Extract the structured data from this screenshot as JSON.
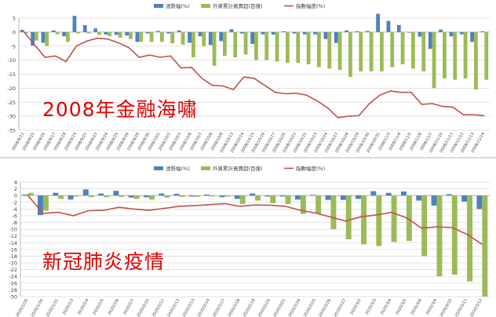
{
  "chart_data": [
    {
      "type": "bar",
      "caption": "2008年金融海嘯",
      "legend": [
        "漲跌幅(%)",
        "外資累計買賣超(百億)",
        "指數幅度(%)"
      ],
      "legend_position": "top-right",
      "ylim": [
        -35,
        5
      ],
      "yticks": [
        5,
        0,
        -5,
        -10,
        -15,
        -20,
        -25,
        -30,
        -35
      ],
      "grid": true,
      "categories": [
        "2008/9/12",
        "2008/9/15",
        "2008/9/16",
        "2008/9/17",
        "2008/9/18",
        "2008/9/19",
        "2008/9/22",
        "2008/9/23",
        "2008/9/24",
        "2008/9/25",
        "2008/9/26",
        "2008/9/29",
        "2008/9/30",
        "2008/10/1",
        "2008/10/2",
        "2008/10/3",
        "2008/10/6",
        "2008/10/7",
        "2008/10/8",
        "2008/10/9",
        "2008/10/13",
        "2008/10/14",
        "2008/10/15",
        "2008/10/16",
        "2008/10/17",
        "2008/10/20",
        "2008/10/21",
        "2008/10/22",
        "2008/10/23",
        "2008/10/24",
        "2008/10/27",
        "2008/10/28",
        "2008/10/29",
        "2008/10/30",
        "2008/10/31",
        "2008/11/3",
        "2008/11/4",
        "2008/11/5",
        "2008/11/6",
        "2008/11/7",
        "2008/11/10",
        "2008/11/11",
        "2008/11/12",
        "2008/11/13",
        "2008/11/14"
      ],
      "series": [
        {
          "name": "漲跌幅(%)",
          "kind": "bar",
          "color": "#4f81bd",
          "values": [
            0.8,
            -4.8,
            -3.8,
            0.6,
            -1.5,
            5.8,
            2.5,
            1.3,
            -0.9,
            -1.0,
            -1.2,
            -3.5,
            -0.5,
            0.4,
            -0.5,
            0.6,
            -3.8,
            -1.5,
            -4.6,
            -3.2,
            1.0,
            -0.5,
            -4.2,
            -0.8,
            -0.9,
            0.3,
            -0.5,
            -0.8,
            -0.8,
            -2.5,
            -3.9,
            0.6,
            0.3,
            0.4,
            6.5,
            4.0,
            2.5,
            -0.2,
            -1.6,
            -6.0,
            0.9,
            -1.5,
            -0.8,
            -3.5,
            0.3
          ]
        },
        {
          "name": "外資累計買賣超(百億)",
          "kind": "bar",
          "color": "#9bbb59",
          "values": [
            -0.5,
            -3.0,
            -5.0,
            -0.8,
            -3.5,
            -0.5,
            -0.5,
            -1.0,
            -1.5,
            -2.0,
            -2.5,
            -3.5,
            -3.5,
            -3.5,
            -4.0,
            -4.5,
            -9.0,
            -5.0,
            -12.0,
            -8.5,
            -9.0,
            -8.0,
            -10.0,
            -10.0,
            -10.5,
            -11.0,
            -11.0,
            -11.5,
            -12.5,
            -13.0,
            -13.5,
            -16.0,
            -14.0,
            -14.0,
            -14.0,
            -12.5,
            -11.5,
            -13.0,
            -14.0,
            -20.0,
            -16.5,
            -17.0,
            -16.5,
            -20.5,
            -17.0
          ]
        },
        {
          "name": "指數幅度(%)",
          "kind": "line",
          "color": "#c0504d",
          "values": [
            0,
            -4.5,
            -9,
            -8.5,
            -10.5,
            -5,
            -3.2,
            -2.2,
            -2.5,
            -3.8,
            -5.5,
            -9,
            -8.2,
            -9,
            -8.5,
            -12.8,
            -12.6,
            -16.5,
            -19,
            -19.2,
            -20.5,
            -16,
            -16.5,
            -19,
            -21.5,
            -22,
            -21.8,
            -22.5,
            -24.5,
            -27,
            -30.5,
            -30,
            -29.8,
            -25.5,
            -22.5,
            -21,
            -21.5,
            -21.5,
            -25.8,
            -25.5,
            -26.5,
            -26.8,
            -29.5,
            -29.5,
            -29.8
          ]
        }
      ]
    },
    {
      "type": "bar",
      "caption": "新冠肺炎疫情",
      "legend": [
        "漲跌幅(%)",
        "外資累計買賣超(百億)",
        "指數幅度(%)"
      ],
      "legend_position": "top-right",
      "ylim": [
        -30,
        4
      ],
      "yticks": [
        4,
        2,
        0,
        -2,
        -4,
        -6,
        -8,
        -10,
        -12,
        -14,
        -16,
        -18,
        -20,
        -22,
        -24,
        -26,
        -28,
        -30
      ],
      "grid": true,
      "categories": [
        "2020/1/20",
        "2020/1/30",
        "2020/1/31",
        "2020/2/3",
        "2020/2/4",
        "2020/2/5",
        "2020/2/6",
        "2020/2/7",
        "2020/2/10",
        "2020/2/11",
        "2020/2/12",
        "2020/2/13",
        "2020/2/14",
        "2020/2/17",
        "2020/2/18",
        "2020/2/19",
        "2020/2/20",
        "2020/2/21",
        "2020/2/24",
        "2020/2/25",
        "2020/2/26",
        "2020/2/27",
        "2020/3/2",
        "2020/3/3",
        "2020/3/4",
        "2020/3/5",
        "2020/3/6",
        "2020/3/9",
        "2020/3/10",
        "2020/3/11",
        "2020/3/12"
      ],
      "series": [
        {
          "name": "漲跌幅(%)",
          "kind": "bar",
          "color": "#4f81bd",
          "values": [
            0.3,
            -5.8,
            0.8,
            -1.2,
            1.8,
            0.6,
            1.4,
            -0.6,
            -0.5,
            0.6,
            0.5,
            -0.3,
            0.3,
            -0.5,
            -1.0,
            0.6,
            -0.3,
            -0.3,
            -1.2,
            0.2,
            -1.3,
            -1.3,
            -1.0,
            1.3,
            0.8,
            1.2,
            -1.5,
            -3.0,
            0.4,
            -1.8,
            -4.0
          ]
        },
        {
          "name": "外資累計買賣超(百億)",
          "kind": "bar",
          "color": "#9bbb59",
          "values": [
            0.8,
            -4.5,
            -1.0,
            -0.3,
            -0.5,
            -0.5,
            -0.4,
            -1.0,
            -1.2,
            -0.6,
            -0.4,
            -0.4,
            -0.3,
            -0.3,
            -2.5,
            -1.5,
            -2.3,
            -2.5,
            -5.5,
            -5.4,
            -10.0,
            -13.0,
            -14.5,
            -15.0,
            -13.8,
            -13.5,
            -18.0,
            -24.0,
            -23.5,
            -25.5,
            -30.0
          ]
        },
        {
          "name": "指數幅度(%)",
          "kind": "line",
          "color": "#c0504d",
          "values": [
            0,
            -5.3,
            -5,
            -6,
            -4.5,
            -4.4,
            -3.5,
            -4,
            -4.4,
            -3.8,
            -3.2,
            -3,
            -2.7,
            -2.4,
            -3.2,
            -2.8,
            -2.9,
            -3.2,
            -4.4,
            -5.2,
            -6.4,
            -7.6,
            -6.3,
            -5.8,
            -5,
            -6.6,
            -9.7,
            -9.3,
            -9.5,
            -11.5,
            -14.5
          ]
        }
      ]
    }
  ]
}
